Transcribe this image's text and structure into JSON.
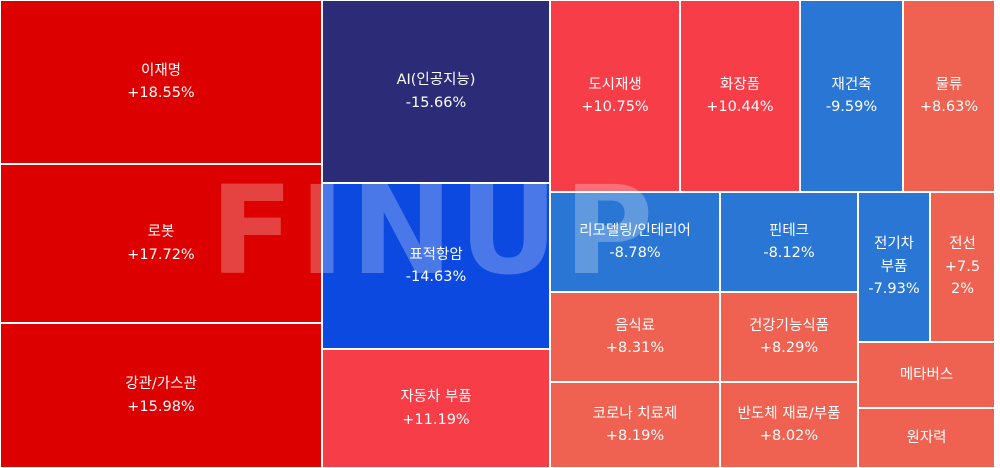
{
  "chart_data": {
    "type": "treemap",
    "watermark": "FINUP",
    "colors": {
      "strong_up": "#dc0000",
      "up": "#f73d48",
      "mild_up": "#ef6150",
      "strong_down": "#2c2b78",
      "down": "#0b49e0",
      "mild_down": "#2a76d4"
    },
    "items": [
      {
        "name": "이재명",
        "value": "+18.55%",
        "pct": 18.55
      },
      {
        "name": "로봇",
        "value": "+17.72%",
        "pct": 17.72
      },
      {
        "name": "강관/가스관",
        "value": "+15.98%",
        "pct": 15.98
      },
      {
        "name": "AI(인공지능)",
        "value": "-15.66%",
        "pct": -15.66
      },
      {
        "name": "표적항암",
        "value": "-14.63%",
        "pct": -14.63
      },
      {
        "name": "자동차 부품",
        "value": "+11.19%",
        "pct": 11.19
      },
      {
        "name": "도시재생",
        "value": "+10.75%",
        "pct": 10.75
      },
      {
        "name": "화장품",
        "value": "+10.44%",
        "pct": 10.44
      },
      {
        "name": "재건축",
        "value": "-9.59%",
        "pct": -9.59
      },
      {
        "name": "물류",
        "value": "+8.63%",
        "pct": 8.63
      },
      {
        "name": "리모델링/인테리어",
        "value": "-8.78%",
        "pct": -8.78
      },
      {
        "name": "핀테크",
        "value": "-8.12%",
        "pct": -8.12
      },
      {
        "name": "전기차\n부품",
        "value": "-7.93%",
        "pct": -7.93
      },
      {
        "name": "전선",
        "value": "+7.5\n2%",
        "pct": 7.52
      },
      {
        "name": "음식료",
        "value": "+8.31%",
        "pct": 8.31
      },
      {
        "name": "건강기능식품",
        "value": "+8.29%",
        "pct": 8.29
      },
      {
        "name": "메타버스",
        "value": "",
        "pct": null
      },
      {
        "name": "코로나 치료제",
        "value": "+8.19%",
        "pct": 8.19
      },
      {
        "name": "반도체 재료/부품",
        "value": "+8.02%",
        "pct": 8.02
      },
      {
        "name": "원자력",
        "value": "",
        "pct": null
      }
    ]
  }
}
